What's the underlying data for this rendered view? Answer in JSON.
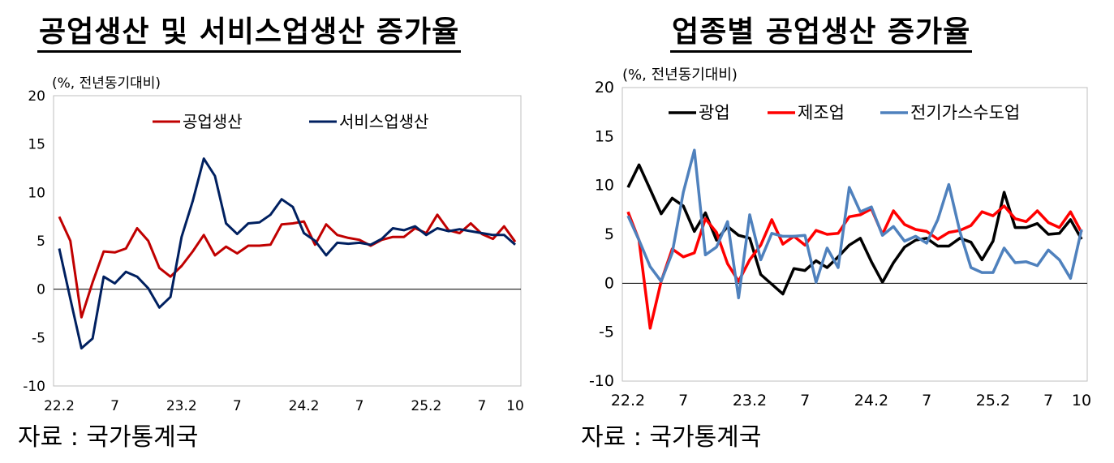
{
  "charts": [
    {
      "title": "공업생산 및 서비스업생산 증가율",
      "unit_label": "(%, 전년동기대비)",
      "source": "자료 : 국가통계국"
    },
    {
      "title": "업종별 공업생산 증가율",
      "unit_label": "(%, 전년동기대비)",
      "source": "자료 : 국가통계국"
    }
  ],
  "chart_data": [
    {
      "type": "line",
      "title": "공업생산 및 서비스업생산 증가율",
      "ylabel": "(%, 전년동기대비)",
      "xlabel": "",
      "ylim": [
        -10,
        20
      ],
      "yticks": [
        -10,
        -5,
        0,
        5,
        10,
        15,
        20
      ],
      "x_tick_labels": [
        {
          "index": 0,
          "label": "22.2"
        },
        {
          "index": 5,
          "label": "7"
        },
        {
          "index": 11,
          "label": "23.2"
        },
        {
          "index": 16,
          "label": "7"
        },
        {
          "index": 22,
          "label": "24.2"
        },
        {
          "index": 27,
          "label": "7"
        },
        {
          "index": 33,
          "label": "25.2"
        },
        {
          "index": 38,
          "label": "7"
        },
        {
          "index": 41,
          "label": "10"
        }
      ],
      "legend_position": "top",
      "zero_line": true,
      "series": [
        {
          "name": "공업생산",
          "color": "#c00000",
          "values": [
            7.5,
            5.0,
            -2.9,
            0.7,
            3.9,
            3.8,
            4.2,
            6.3,
            5.0,
            2.2,
            1.3,
            2.4,
            3.9,
            5.6,
            3.5,
            4.4,
            3.7,
            4.5,
            4.5,
            4.6,
            6.7,
            6.8,
            7.0,
            4.6,
            6.7,
            5.6,
            5.3,
            5.1,
            4.5,
            5.1,
            5.4,
            5.4,
            6.3,
            5.8,
            7.7,
            6.1,
            5.8,
            6.8,
            5.7,
            5.2,
            6.5,
            4.9
          ]
        },
        {
          "name": "서비스업생산",
          "color": "#002060",
          "values": [
            4.2,
            -1.0,
            -6.1,
            -5.1,
            1.3,
            0.6,
            1.8,
            1.3,
            0.1,
            -1.9,
            -0.8,
            5.4,
            9.1,
            13.5,
            11.7,
            6.8,
            5.7,
            6.8,
            6.9,
            7.7,
            9.3,
            8.5,
            5.8,
            5.0,
            3.5,
            4.8,
            4.7,
            4.8,
            4.6,
            5.2,
            6.3,
            6.1,
            6.5,
            5.6,
            6.3,
            6.0,
            6.2,
            6.0,
            5.8,
            5.6,
            5.6,
            4.6
          ]
        }
      ]
    },
    {
      "type": "line",
      "title": "업종별 공업생산 증가율",
      "ylabel": "(%, 전년동기대비)",
      "xlabel": "",
      "ylim": [
        -10,
        20
      ],
      "yticks": [
        -10,
        -5,
        0,
        5,
        10,
        15,
        20
      ],
      "x_tick_labels": [
        {
          "index": 0,
          "label": "22.2"
        },
        {
          "index": 5,
          "label": "7"
        },
        {
          "index": 11,
          "label": "23.2"
        },
        {
          "index": 16,
          "label": "7"
        },
        {
          "index": 22,
          "label": "24.2"
        },
        {
          "index": 27,
          "label": "7"
        },
        {
          "index": 33,
          "label": "25.2"
        },
        {
          "index": 38,
          "label": "7"
        },
        {
          "index": 41,
          "label": "10"
        }
      ],
      "legend_position": "top",
      "zero_line": true,
      "series": [
        {
          "name": "광업",
          "color": "#000000",
          "values": [
            9.8,
            12.1,
            9.6,
            7.1,
            8.7,
            7.9,
            5.3,
            7.2,
            4.4,
            5.8,
            4.9,
            4.6,
            0.9,
            -0.1,
            -1.1,
            1.5,
            1.3,
            2.3,
            1.6,
            2.7,
            3.9,
            4.6,
            2.2,
            0.1,
            2.1,
            3.7,
            4.4,
            4.6,
            3.8,
            3.8,
            4.6,
            4.2,
            2.4,
            4.3,
            9.3,
            5.7,
            5.7,
            6.1,
            5.0,
            5.1,
            6.5,
            4.5
          ]
        },
        {
          "name": "제조업",
          "color": "#ff0000",
          "values": [
            7.3,
            4.4,
            -4.6,
            0.2,
            3.5,
            2.7,
            3.1,
            6.6,
            5.2,
            2.0,
            0.2,
            2.4,
            3.9,
            6.5,
            4.0,
            4.8,
            3.9,
            5.4,
            5.0,
            5.1,
            6.8,
            7.0,
            7.6,
            5.0,
            7.4,
            6.0,
            5.5,
            5.3,
            4.5,
            5.2,
            5.4,
            5.9,
            7.3,
            6.9,
            7.9,
            6.6,
            6.3,
            7.4,
            6.2,
            5.7,
            7.3,
            5.2
          ]
        },
        {
          "name": "전기가스수도업",
          "color": "#4f81bd",
          "values": [
            6.9,
            4.4,
            1.7,
            0.2,
            3.1,
            9.3,
            13.6,
            2.9,
            3.7,
            6.3,
            -1.5,
            7.0,
            2.4,
            5.1,
            4.8,
            4.8,
            4.9,
            0.1,
            3.6,
            1.6,
            9.8,
            7.3,
            7.8,
            4.9,
            5.8,
            4.3,
            4.8,
            4.1,
            6.5,
            10.1,
            5.3,
            1.6,
            1.1,
            1.1,
            3.6,
            2.1,
            2.2,
            1.8,
            3.4,
            2.4,
            0.5,
            5.5
          ]
        }
      ]
    }
  ]
}
